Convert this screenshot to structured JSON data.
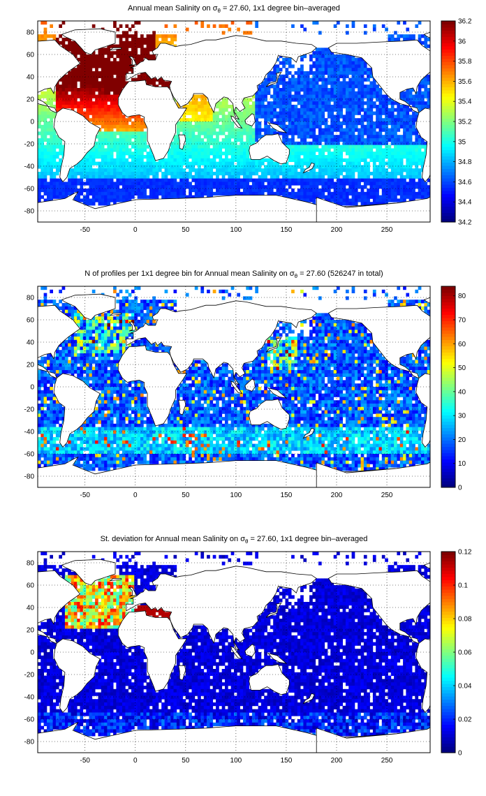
{
  "panels": [
    {
      "title_pre": "Annual mean Salinity on ",
      "title_sym": "σ",
      "title_sub": "θ",
      "title_post": " = 27.60, 1x1 degree bin–averaged",
      "field": "salinity",
      "colorbar": {
        "min": 34.2,
        "max": 36.2,
        "ticks": [
          "36.2",
          "36",
          "35.8",
          "35.6",
          "35.4",
          "35.2",
          "35",
          "34.8",
          "34.6",
          "34.4",
          "34.2"
        ],
        "tick_values": [
          36.2,
          36,
          35.8,
          35.6,
          35.4,
          35.2,
          35,
          34.8,
          34.6,
          34.4,
          34.2
        ]
      }
    },
    {
      "title_pre": "N of profiles per 1x1 degree bin for Annual mean Salinity on ",
      "title_sym": "σ",
      "title_sub": "θ",
      "title_post": " = 27.60 (526247 in total)",
      "field": "count",
      "colorbar": {
        "min": 0,
        "max": 84,
        "ticks": [
          "80",
          "70",
          "60",
          "50",
          "40",
          "30",
          "20",
          "10",
          "0"
        ],
        "tick_values": [
          80,
          70,
          60,
          50,
          40,
          30,
          20,
          10,
          0
        ]
      }
    },
    {
      "title_pre": "St. deviation for Annual mean Salinity on ",
      "title_sym": "σ",
      "title_sub": "θ",
      "title_post": " = 27.60, 1x1 degree bin–averaged",
      "field": "stddev",
      "colorbar": {
        "min": 0,
        "max": 0.12,
        "ticks": [
          "0.12",
          "0.1",
          "0.08",
          "0.06",
          "0.04",
          "0.02",
          "0"
        ],
        "tick_values": [
          0.12,
          0.1,
          0.08,
          0.06,
          0.04,
          0.02,
          0
        ]
      }
    }
  ],
  "map_axes": {
    "xlim": [
      -97,
      293
    ],
    "ylim": [
      -90,
      90
    ],
    "xticks": [
      -50,
      0,
      50,
      100,
      150,
      200,
      250
    ],
    "yticks": [
      80,
      60,
      40,
      20,
      0,
      -20,
      -40,
      -60,
      -80
    ],
    "grid": "dotted"
  },
  "colors": {
    "land": "#ffffff",
    "coast": "#000000",
    "frame": "#000000"
  },
  "colormap": "jet"
}
